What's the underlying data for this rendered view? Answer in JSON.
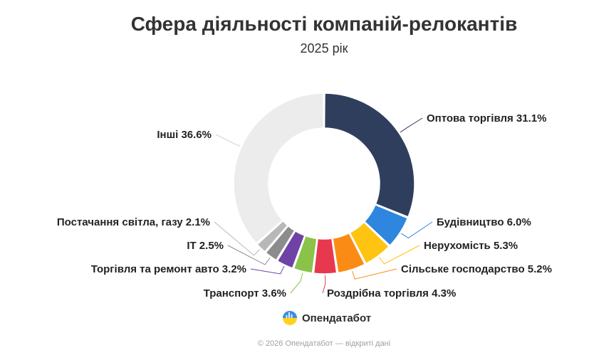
{
  "title": "Сфера діяльності компаній-релокантів",
  "subtitle": "2025 рік",
  "brand": {
    "name": "Опендатабот",
    "logo_icon": "opendatabot-logo-icon"
  },
  "footer": "© 2026 Опендатабот — відкриті дані",
  "chart_data": {
    "type": "pie",
    "variant": "donut",
    "title": "Сфера діяльності компаній-релокантів",
    "subtitle": "2025 рік",
    "value_unit": "%",
    "slices": [
      {
        "label": "Оптова торгівля",
        "value": 31.1,
        "display": "Оптова торгівля 31.1%",
        "color": "#2f3e5c"
      },
      {
        "label": "Будівництво",
        "value": 6.0,
        "display": "Будівництво 6.0%",
        "color": "#2e86de"
      },
      {
        "label": "Нерухомість",
        "value": 5.3,
        "display": "Нерухомість 5.3%",
        "color": "#ffc312"
      },
      {
        "label": "Сільське господарство",
        "value": 5.2,
        "display": "Сільське господарство 5.2%",
        "color": "#fa8c16"
      },
      {
        "label": "Роздрібна торгівля",
        "value": 4.3,
        "display": "Роздрібна торгівля 4.3%",
        "color": "#e8384f"
      },
      {
        "label": "Транспорт",
        "value": 3.6,
        "display": "Транспорт 3.6%",
        "color": "#8bc34a"
      },
      {
        "label": "Торгівля та ремонт авто",
        "value": 3.2,
        "display": "Торгівля та ремонт авто 3.2%",
        "color": "#6f42a6"
      },
      {
        "label": "IT",
        "value": 2.5,
        "display": "IT 2.5%",
        "color": "#8c8c8c"
      },
      {
        "label": "Постачання світла, газу",
        "value": 2.1,
        "display": "Постачання світла, газу 2.1%",
        "color": "#b8b8b8"
      },
      {
        "label": "Інші",
        "value": 36.6,
        "display": "Інші 36.6%",
        "color": "#ececec"
      }
    ]
  }
}
